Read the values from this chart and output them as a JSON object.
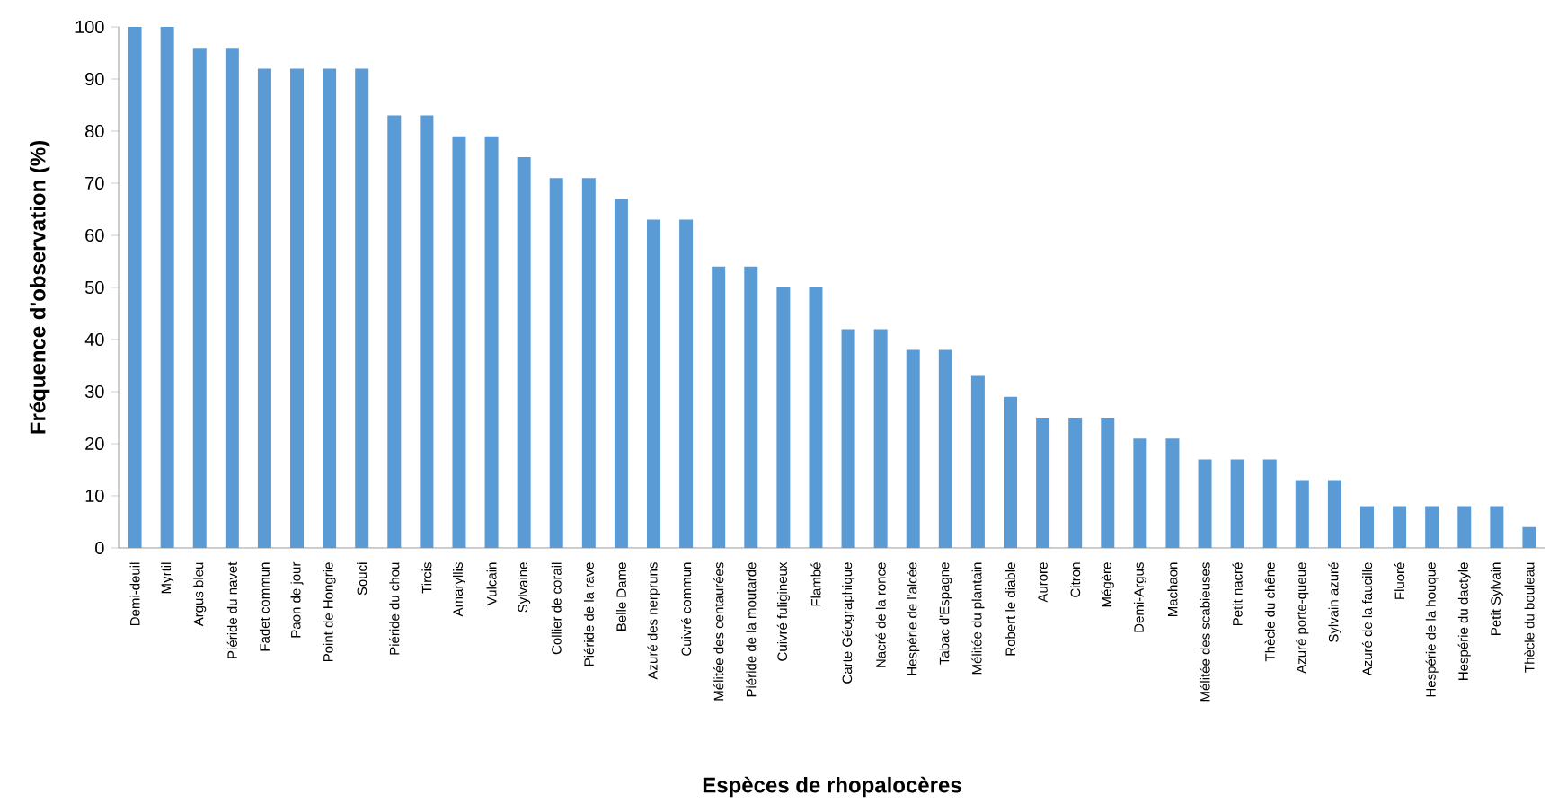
{
  "chart_data": {
    "type": "bar",
    "xlabel": "Espèces de rhopalocères",
    "ylabel": "Fréquence d'observation (%)",
    "categories": [
      "Demi-deuil",
      "Myrtil",
      "Argus bleu",
      "Piéride du navet",
      "Fadet commun",
      "Paon de jour",
      "Point de Hongrie",
      "Souci",
      "Piéride du chou",
      "Tircis",
      "Amaryllis",
      "Vulcain",
      "Sylvaine",
      "Collier de corail",
      "Piéride de la rave",
      "Belle Dame",
      "Azuré des nerpruns",
      "Cuivré commun",
      "Mélitée des centaurées",
      "Piéride de la moutarde",
      "Cuivré fuligineux",
      "Flambé",
      "Carte Géographique",
      "Nacré de la ronce",
      "Hespérie de l'alcée",
      "Tabac d'Espagne",
      "Mélitée du plantain",
      "Robert le diable",
      "Aurore",
      "Citron",
      "Mégère",
      "Demi-Argus",
      "Machaon",
      "Mélitée des scabieuses",
      "Petit nacré",
      "Thècle du chêne",
      "Azuré porte-queue",
      "Sylvain azuré",
      "Azuré de la faucille",
      "Fluoré",
      "Hespérie de la houque",
      "Hespérie du dactyle",
      "Petit Sylvain",
      "Thècle du bouleau"
    ],
    "values": [
      100,
      100,
      96,
      96,
      92,
      92,
      92,
      92,
      83,
      83,
      79,
      79,
      75,
      71,
      71,
      67,
      63,
      63,
      54,
      54,
      50,
      50,
      42,
      42,
      38,
      38,
      33,
      29,
      25,
      25,
      25,
      21,
      21,
      17,
      17,
      17,
      13,
      13,
      8,
      8,
      8,
      8,
      8,
      4
    ],
    "color": "#5b9bd5",
    "ylim": [
      0,
      100
    ],
    "yticks": [
      0,
      10,
      20,
      30,
      40,
      50,
      60,
      70,
      80,
      90,
      100
    ]
  }
}
